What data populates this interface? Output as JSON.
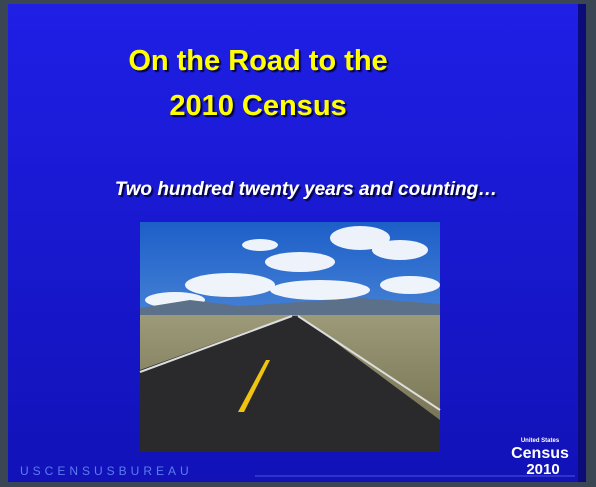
{
  "slide": {
    "title_lines": [
      "On the Road to the",
      "2010 Census"
    ],
    "subtitle": "Two hundred twenty years and counting…",
    "footer": "USCENSUSBUREAU",
    "logo": {
      "top": "United States",
      "word": "Census",
      "year": "2010"
    }
  }
}
